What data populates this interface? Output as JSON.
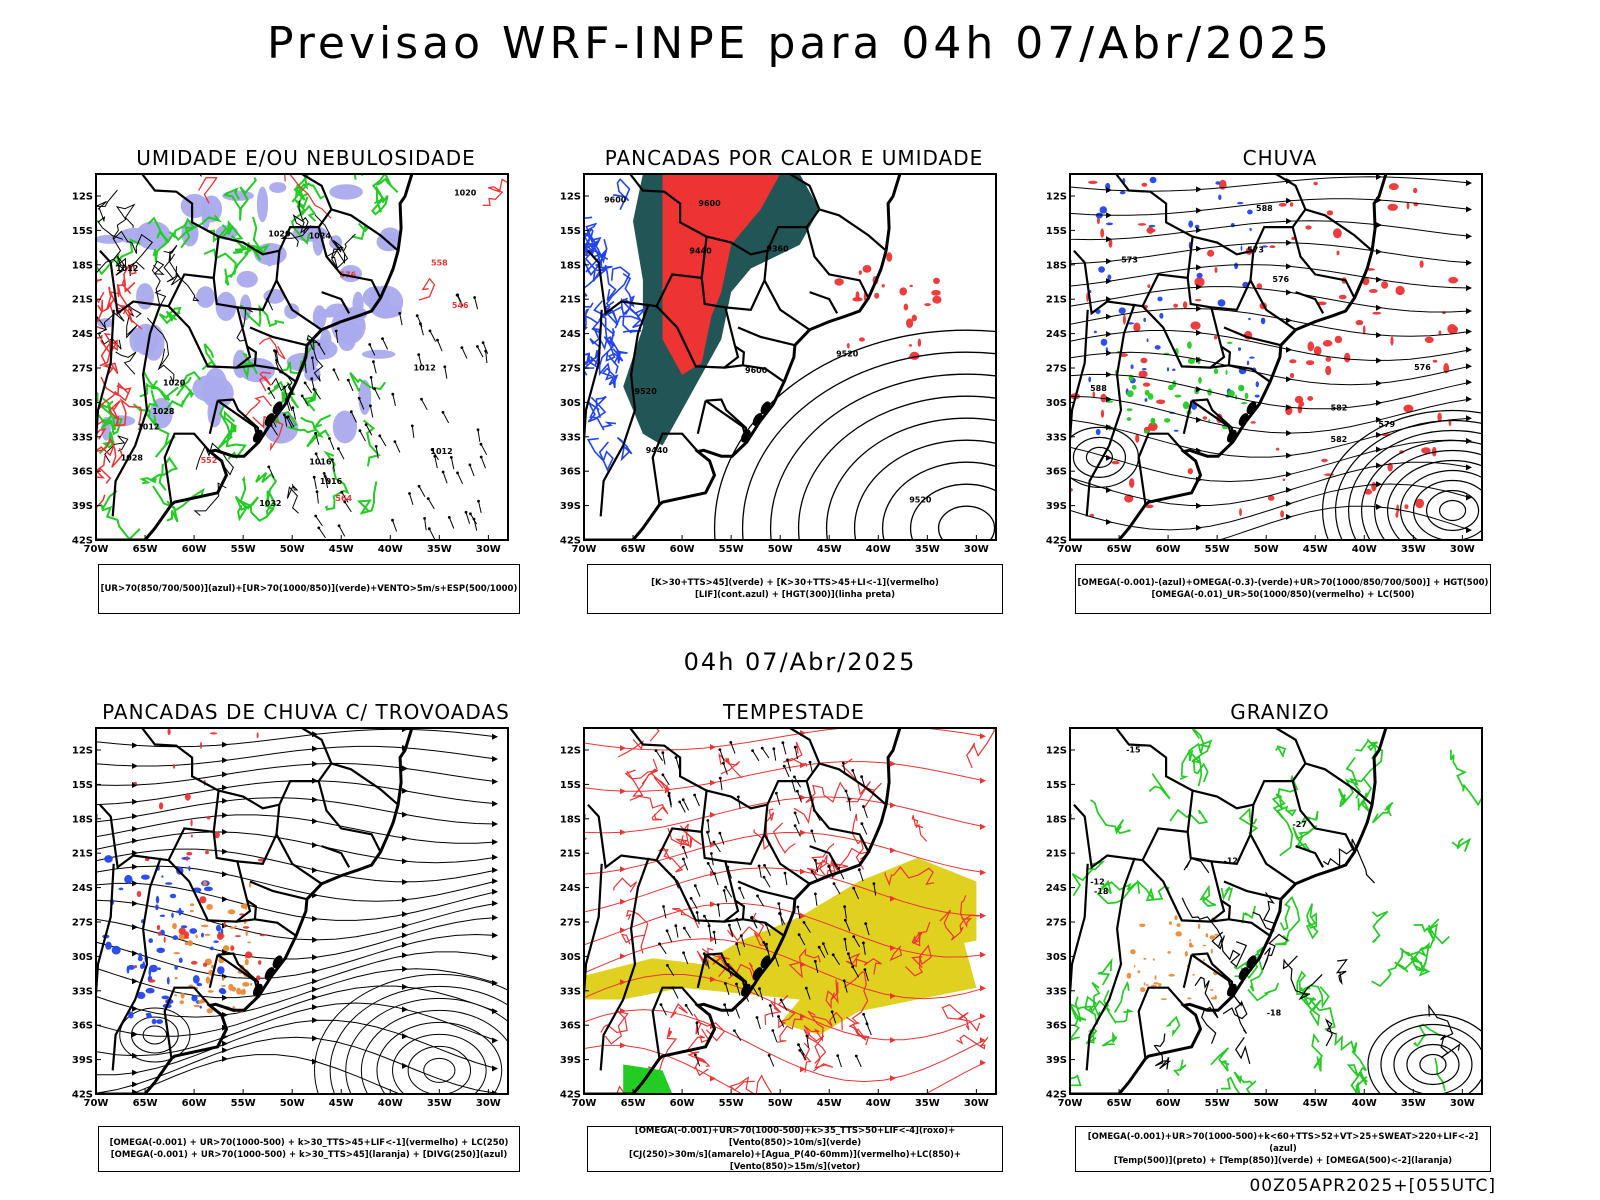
{
  "main_title": "Previsao WRF-INPE  para 04h 07/Abr/2025",
  "mid_title": "04h 07/Abr/2025",
  "footer": "00Z05APR2025+[055UTC]",
  "lat_labels": [
    "12S",
    "15S",
    "18S",
    "21S",
    "24S",
    "27S",
    "30S",
    "33S",
    "36S",
    "39S",
    "42S"
  ],
  "lon_labels": [
    "70W",
    "65W",
    "60W",
    "55W",
    "50W",
    "45W",
    "40W",
    "35W",
    "30W"
  ],
  "colors": {
    "red": "#ee3333",
    "blue": "#2244ee",
    "green": "#22cc22",
    "lavender": "#aaaaee",
    "teal": "#225555",
    "orange": "#ee8833",
    "yellow": "#e0d020"
  },
  "panels": [
    {
      "title": "UMIDADE E/OU NEBULOSIDADE",
      "legend": [
        "[UR>70(850/700/500)](azul)+[UR>70(1000/850)](verde)+VENTO>5m/s+ESP(500/1000)"
      ],
      "contour_labels": [
        "1012",
        "1012",
        "1012",
        "1012",
        "1016",
        "1016",
        "1020",
        "1020",
        "1020",
        "1024",
        "1028",
        "1028",
        "1032",
        "570",
        "576",
        "564",
        "558",
        "552",
        "546"
      ]
    },
    {
      "title": "PANCADAS POR CALOR E UMIDADE",
      "legend": [
        "[K>30+TTS>45](verde) + [K>30+TTS>45+LI<-1](vermelho)",
        "[LIF](cont.azul) + [HGT(300)](linha preta)"
      ],
      "contour_labels": [
        "9600",
        "9600",
        "9600",
        "9520",
        "9520",
        "9520",
        "9440",
        "9440",
        "9360"
      ]
    },
    {
      "title": "CHUVA",
      "legend": [
        "[OMEGA(-0.001)-(azul)+OMEGA(-0.3)-(verde)+UR>70(1000/850/700/500)] + HGT(500)",
        "[OMEGA(-0.01)_UR>50(1000/850)(vermelho) + LC(500)"
      ],
      "contour_labels": [
        "588",
        "588",
        "582",
        "582",
        "579",
        "573",
        "573",
        "576",
        "576"
      ]
    },
    {
      "title": "PANCADAS DE CHUVA C/ TROVOADAS",
      "legend": [
        "[OMEGA(-0.001) + UR>70(1000-500) + k>30_TTS>45+LIF<-1](vermelho) + LC(250)",
        "[OMEGA(-0.001) + UR>70(1000-500) + k>30_TTS>45](laranja) + [DIVG(250)](azul)"
      ],
      "contour_labels": []
    },
    {
      "title": "TEMPESTADE",
      "legend": [
        "[OMEGA(-0.001)+UR>70(1000-500)+k>35_TTS>50+LIF<-4](roxo)+[Vento(850)>10m/s](verde)",
        "[CJ(250)>30m/s](amarelo)+[Agua_P(40-60mm)](vermelho)+LC(850)+[Vento(850)>15m/s](vetor)"
      ],
      "contour_labels": []
    },
    {
      "title": "GRANIZO",
      "legend": [
        "[OMEGA(-0.001)+UR>70(1000-500)+k<60+TTS>52+VT>25+SWEAT>220+LIF<-2](azul)",
        "[Temp(500)](preto) + [Temp(850)](verde) + [OMEGA(500)<-2](laranja)"
      ],
      "contour_labels": [
        "-12",
        "-12",
        "-15",
        "-18",
        "-18",
        "-27"
      ]
    }
  ]
}
